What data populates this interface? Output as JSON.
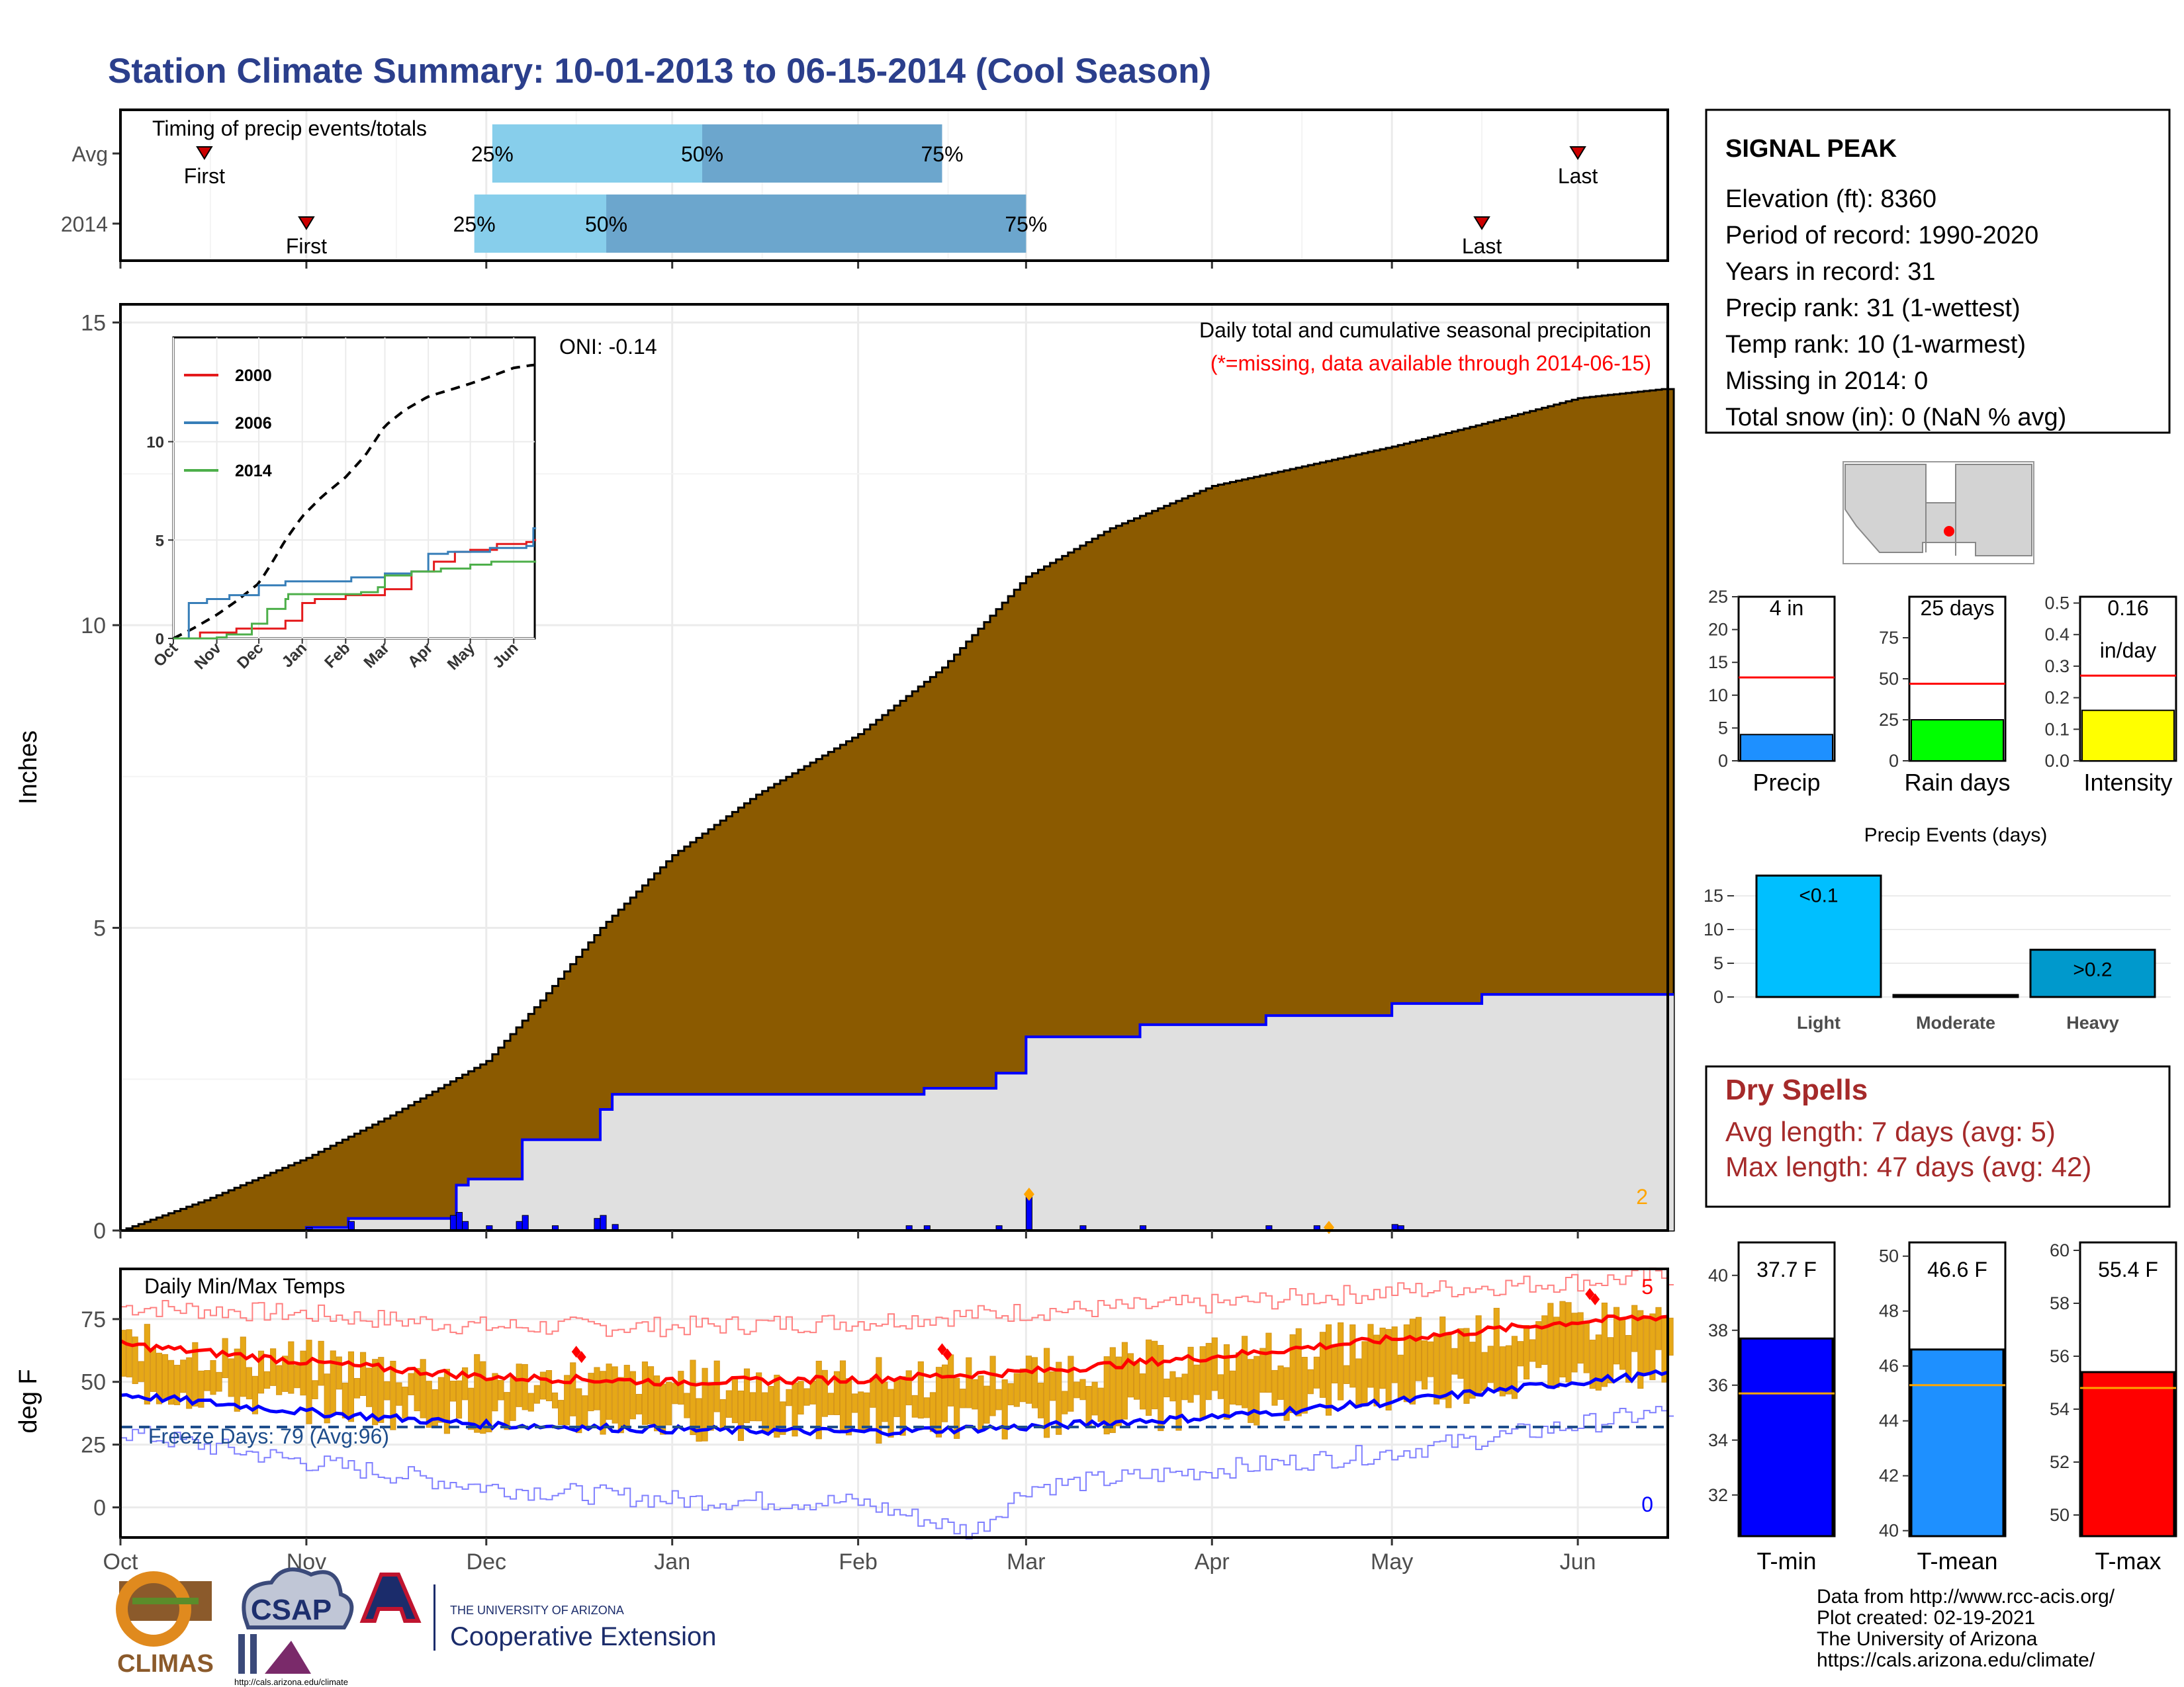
{
  "title": "Station Climate Summary: 10-01-2013 to 06-15-2014 (Cool Season)",
  "timing": {
    "label": "Timing of precip events/totals",
    "rows": [
      {
        "name": "Avg",
        "p25": "2013-12-02",
        "p50": "2014-01-06",
        "p75": "2014-02-15",
        "first": "2013-10-15",
        "last": "2014-06-01"
      },
      {
        "name": "2014",
        "p25": "2013-11-29",
        "p50": "2013-12-21",
        "p75": "2014-03-01",
        "first": "2013-11-01",
        "last": "2014-05-16"
      }
    ],
    "pct_labels": [
      "25%",
      "50%",
      "75%"
    ],
    "first_label": "First",
    "last_label": "Last"
  },
  "precip_panel": {
    "ylabel": "Inches",
    "yticks": [
      0,
      5,
      10,
      15
    ],
    "title": "Daily total and cumulative seasonal precipitation",
    "subtitle": "(*=missing, data available through 2014-06-15)",
    "oni": "ONI: -0.14",
    "corner_count": "2"
  },
  "inset": {
    "series": [
      "2000",
      "2006",
      "2014"
    ],
    "colors": [
      "#e41a1c",
      "#377eb8",
      "#4daf4a"
    ],
    "yticks": [
      0,
      5,
      10
    ],
    "months": [
      "Oct",
      "Nov",
      "Dec",
      "Jan",
      "Feb",
      "Mar",
      "Apr",
      "May",
      "Jun"
    ]
  },
  "temp_panel": {
    "title": "Daily Min/Max Temps",
    "ylabel": "deg F",
    "yticks": [
      0,
      25,
      50,
      75
    ],
    "freeze_label": "Freeze Days: 79 (Avg:96)",
    "count_high": "5",
    "count_low": "0"
  },
  "x_months": [
    "Oct",
    "Nov",
    "Dec",
    "Jan",
    "Feb",
    "Mar",
    "Apr",
    "May",
    "Jun"
  ],
  "station": {
    "name": "SIGNAL PEAK",
    "lines": [
      "Elevation (ft): 8360",
      "Period of record: 1990-2020",
      "Years in record: 31",
      "Precip rank: 31 (1-wettest)",
      "Temp rank: 10 (1-warmest)",
      "Missing in 2014: 0",
      "Total snow (in): 0 (NaN % avg)"
    ]
  },
  "mini_bars": [
    {
      "label": "Precip",
      "value_text": [
        "4 in"
      ],
      "value": 4,
      "avg": 12.7,
      "ymax": 25,
      "yticks": [
        "0",
        "5",
        "10",
        "15",
        "20",
        "25"
      ],
      "color": "#1e90ff"
    },
    {
      "label": "Rain days",
      "value_text": [
        "25 days"
      ],
      "value": 25,
      "avg": 47,
      "ymax": 100,
      "yticks": [
        "0",
        "25",
        "50",
        "75"
      ],
      "color": "#00ff00"
    },
    {
      "label": "Intensity",
      "value_text": [
        "0.16",
        "in/day"
      ],
      "value": 0.16,
      "avg": 0.27,
      "ymax": 0.52,
      "yticks": [
        "0.0",
        "0.1",
        "0.2",
        "0.3",
        "0.4",
        "0.5"
      ],
      "color": "#ffff00"
    }
  ],
  "precip_events": {
    "title": "Precip Events (days)",
    "categories": [
      "Light",
      "Moderate",
      "Heavy"
    ],
    "values": [
      18,
      0,
      7
    ],
    "bar_labels": [
      "<0.1",
      "",
      ">0.2"
    ],
    "yticks": [
      0,
      5,
      10,
      15
    ],
    "colors": [
      "#00bfff",
      "#1f6fbf",
      "#0099cc"
    ]
  },
  "dry_spells": {
    "title": "Dry Spells",
    "avg_line": "Avg length: 7 days (avg: 5)",
    "max_line": "Max length: 47 days (avg: 42)"
  },
  "temp_bars": [
    {
      "label": "T-min",
      "value_text": "37.7 F",
      "value": 37.7,
      "avg": 35.7,
      "ymin": 30.5,
      "ymax": 41.2,
      "yticks": [
        32,
        34,
        36,
        38,
        40
      ],
      "color": "#0000ff"
    },
    {
      "label": "T-mean",
      "value_text": "46.6 F",
      "value": 46.6,
      "avg": 45.3,
      "ymin": 39.8,
      "ymax": 50.5,
      "yticks": [
        40,
        42,
        44,
        46,
        48,
        50
      ],
      "color": "#1e90ff"
    },
    {
      "label": "T-max",
      "value_text": "55.4 F",
      "value": 55.4,
      "avg": 54.8,
      "ymin": 49.2,
      "ymax": 60.3,
      "yticks": [
        50,
        52,
        54,
        56,
        58,
        60
      ],
      "color": "#ff0000"
    }
  ],
  "credits": [
    "Data from http://www.rcc-acis.org/",
    "Plot created: 02-19-2021",
    "The University of Arizona",
    "https://cals.arizona.edu/climate/"
  ],
  "logos": {
    "climas": "CLIMAS",
    "csap": "CSAP",
    "csap_url": "http://cals.arizona.edu/climate",
    "ua_small": "THE UNIVERSITY OF ARIZONA",
    "coop": "Cooperative Extension"
  },
  "chart_data": [
    {
      "type": "area",
      "title": "Daily total and cumulative seasonal precipitation",
      "ylabel": "Inches",
      "ylim": [
        0,
        15.3
      ],
      "xlim": [
        "2013-10-01",
        "2014-06-15"
      ],
      "series": [
        {
          "name": "",
          "kind": "average cumulative precipitation (brown area)",
          "points": [
            [
              "2013-10-01",
              0
            ],
            [
              "2013-10-15",
              0.5
            ],
            [
              "2013-11-01",
              1.2
            ],
            [
              "2013-11-15",
              1.9
            ],
            [
              "2013-12-01",
              2.8
            ],
            [
              "2013-12-10",
              3.8
            ],
            [
              "2013-12-20",
              5.0
            ],
            [
              "2014-01-01",
              6.2
            ],
            [
              "2014-01-15",
              7.2
            ],
            [
              "2014-02-01",
              8.2
            ],
            [
              "2014-02-15",
              9.3
            ],
            [
              "2014-03-01",
              10.8
            ],
            [
              "2014-03-15",
              11.6
            ],
            [
              "2014-04-01",
              12.3
            ],
            [
              "2014-04-15",
              12.6
            ],
            [
              "2014-05-01",
              12.95
            ],
            [
              "2014-05-15",
              13.3
            ],
            [
              "2014-06-01",
              13.75
            ],
            [
              "2014-06-15",
              13.9
            ]
          ]
        },
        {
          "name": "",
          "kind": "2014 cumulative precipitation (blue line)",
          "points": [
            [
              "2013-10-01",
              0
            ],
            [
              "2013-11-01",
              0.05
            ],
            [
              "2013-11-08",
              0.2
            ],
            [
              "2013-11-25",
              0.2
            ],
            [
              "2013-11-26",
              0.75
            ],
            [
              "2013-11-28",
              0.85
            ],
            [
              "2013-12-06",
              0.85
            ],
            [
              "2013-12-07",
              1.5
            ],
            [
              "2013-12-19",
              1.5
            ],
            [
              "2013-12-20",
              2.0
            ],
            [
              "2013-12-22",
              2.25
            ],
            [
              "2014-02-09",
              2.25
            ],
            [
              "2014-02-12",
              2.35
            ],
            [
              "2014-02-24",
              2.6
            ],
            [
              "2014-03-01",
              3.2
            ],
            [
              "2014-03-20",
              3.4
            ],
            [
              "2014-04-10",
              3.55
            ],
            [
              "2014-05-01",
              3.75
            ],
            [
              "2014-05-16",
              3.9
            ],
            [
              "2014-06-15",
              3.9
            ]
          ]
        }
      ],
      "daily_precip": [
        [
          "2013-11-01",
          0.05
        ],
        [
          "2013-11-08",
          0.15
        ],
        [
          "2013-11-25",
          0.25
        ],
        [
          "2013-11-26",
          0.3
        ],
        [
          "2013-11-27",
          0.15
        ],
        [
          "2013-12-01",
          0.08
        ],
        [
          "2013-12-06",
          0.15
        ],
        [
          "2013-12-07",
          0.25
        ],
        [
          "2013-12-12",
          0.08
        ],
        [
          "2013-12-19",
          0.2
        ],
        [
          "2013-12-20",
          0.25
        ],
        [
          "2013-12-22",
          0.1
        ],
        [
          "2014-02-09",
          0.08
        ],
        [
          "2014-02-12",
          0.08
        ],
        [
          "2014-02-24",
          0.08
        ],
        [
          "2014-03-01",
          0.6
        ],
        [
          "2014-03-10",
          0.08
        ],
        [
          "2014-03-20",
          0.08
        ],
        [
          "2014-04-10",
          0.08
        ],
        [
          "2014-04-18",
          0.08
        ],
        [
          "2014-05-01",
          0.1
        ],
        [
          "2014-05-02",
          0.08
        ]
      ],
      "markers": [
        [
          "2014-03-01",
          0.6
        ],
        [
          "2014-04-20",
          0.05
        ]
      ]
    },
    {
      "type": "line",
      "title": "Daily Min/Max Temps",
      "ylabel": "deg F",
      "ylim": [
        -12,
        95
      ],
      "freeze_line": 32,
      "series": [
        {
          "name": "",
          "kind": "average max",
          "points": [
            [
              "2013-10-01",
              65
            ],
            [
              "2013-11-01",
              58
            ],
            [
              "2013-12-01",
              52
            ],
            [
              "2014-01-01",
              50
            ],
            [
              "2014-02-01",
              51
            ],
            [
              "2014-03-01",
              54
            ],
            [
              "2014-04-01",
              60
            ],
            [
              "2014-05-01",
              67
            ],
            [
              "2014-06-01",
              74
            ],
            [
              "2014-06-15",
              76
            ]
          ]
        },
        {
          "name": "",
          "kind": "average min",
          "points": [
            [
              "2013-10-01",
              45
            ],
            [
              "2013-11-01",
              38
            ],
            [
              "2013-12-01",
              33
            ],
            [
              "2014-01-01",
              31
            ],
            [
              "2014-02-01",
              30
            ],
            [
              "2014-03-01",
              32
            ],
            [
              "2014-04-01",
              36
            ],
            [
              "2014-05-01",
              42
            ],
            [
              "2014-06-01",
              50
            ],
            [
              "2014-06-15",
              53
            ]
          ]
        },
        {
          "name": "",
          "kind": "record max",
          "points": [
            [
              "2013-10-01",
              80
            ],
            [
              "2013-11-01",
              77
            ],
            [
              "2013-12-01",
              72
            ],
            [
              "2014-01-01",
              72
            ],
            [
              "2014-02-01",
              74
            ],
            [
              "2014-03-01",
              78
            ],
            [
              "2014-04-01",
              81
            ],
            [
              "2014-05-01",
              86
            ],
            [
              "2014-06-01",
              90
            ],
            [
              "2014-06-15",
              92
            ]
          ]
        },
        {
          "name": "",
          "kind": "record min",
          "points": [
            [
              "2013-10-01",
              30
            ],
            [
              "2013-11-01",
              18
            ],
            [
              "2013-12-01",
              8
            ],
            [
              "2014-01-01",
              3
            ],
            [
              "2014-02-01",
              2
            ],
            [
              "2014-02-20",
              -10
            ],
            [
              "2014-03-01",
              8
            ],
            [
              "2014-04-01",
              15
            ],
            [
              "2014-05-01",
              22
            ],
            [
              "2014-06-01",
              33
            ],
            [
              "2014-06-15",
              38
            ]
          ]
        }
      ],
      "daily_range_2014": "orange bars spanning daily min to max, typically 30-65 F in winter rising to 55-80 F in June",
      "record_markers": [
        [
          "2013-12-16",
          62
        ],
        [
          "2014-02-15",
          63
        ],
        [
          "2014-06-03",
          85
        ]
      ]
    }
  ]
}
